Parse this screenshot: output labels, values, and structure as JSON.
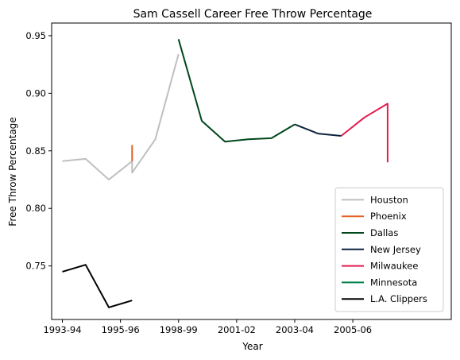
{
  "chart_data": {
    "type": "line",
    "title": "Sam Cassell Career Free Throw Percentage",
    "xlabel": "Year",
    "ylabel": "Free Throw Percentage",
    "xlim": [
      1993.63,
      2007.39
    ],
    "ylim": [
      0.7035,
      0.961
    ],
    "x_ticks": [
      {
        "value": 1994,
        "label": "1993-94"
      },
      {
        "value": 1996,
        "label": "1995-96"
      },
      {
        "value": 1998,
        "label": "1998-99"
      },
      {
        "value": 2000,
        "label": "2001-02"
      },
      {
        "value": 2002,
        "label": "2003-04"
      },
      {
        "value": 2004,
        "label": "2005-06"
      }
    ],
    "y_ticks": [
      0.75,
      0.8,
      0.85,
      0.9,
      0.95
    ],
    "y_tick_labels": [
      "0.75",
      "0.80",
      "0.85",
      "0.90",
      "0.95"
    ],
    "grid": false,
    "legend_position": "lower right",
    "series": [
      {
        "name": "Houston",
        "color": "#bfbfbf",
        "points": [
          [
            1994.0,
            0.841
          ],
          [
            1994.8,
            0.843
          ],
          [
            1995.6,
            0.825
          ],
          [
            1996.4,
            0.841
          ],
          [
            1996.4,
            0.831
          ],
          [
            1997.2,
            0.86
          ],
          [
            1998.0,
            0.934
          ]
        ]
      },
      {
        "name": "Phoenix",
        "color": "#e56020",
        "points": [
          [
            1996.4,
            0.855
          ],
          [
            1996.4,
            0.841
          ]
        ]
      },
      {
        "name": "Dallas",
        "color": "#00471b",
        "points": [
          [
            1998.0,
            0.947
          ],
          [
            1998.8,
            0.876
          ],
          [
            1999.6,
            0.858
          ],
          [
            2000.4,
            0.86
          ],
          [
            2001.2,
            0.861
          ],
          [
            2002.0,
            0.873
          ]
        ]
      },
      {
        "name": "New Jersey",
        "color": "#0c2340",
        "points": [
          [
            2002.0,
            0.873
          ],
          [
            2002.8,
            0.865
          ],
          [
            2003.6,
            0.863
          ]
        ]
      },
      {
        "name": "Milwaukee",
        "color": "#e31b4f",
        "points": [
          [
            2003.6,
            0.863
          ],
          [
            2004.4,
            0.879
          ],
          [
            2005.2,
            0.891
          ],
          [
            2005.2,
            0.84
          ]
        ]
      },
      {
        "name": "Minnesota",
        "color": "#00804a",
        "points": []
      },
      {
        "name": "L.A. Clippers",
        "color": "#000000",
        "points": [
          [
            1994.0,
            0.745
          ],
          [
            1994.8,
            0.751
          ],
          [
            1995.6,
            0.714
          ],
          [
            1996.4,
            0.72
          ]
        ]
      }
    ]
  }
}
